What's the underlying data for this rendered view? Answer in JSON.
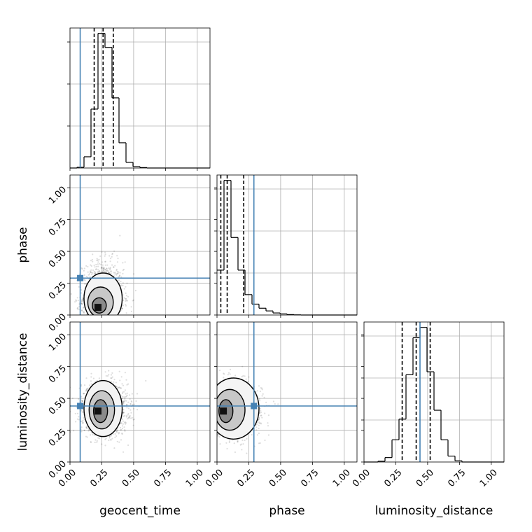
{
  "chart_data": {
    "type": "corner",
    "parameters": [
      "geocent_time",
      "phase",
      "luminosity_distance"
    ],
    "xlabels": [
      "geocent_time",
      "phase",
      "luminosity_distance"
    ],
    "ylabels": [
      "",
      "phase",
      "luminosity_distance"
    ],
    "range": [
      0,
      1.1
    ],
    "ticks": [
      0.0,
      0.25,
      0.5,
      0.75,
      1.0
    ],
    "tick_labels": [
      "0.00",
      "0.25",
      "0.50",
      "0.75",
      "1.00"
    ],
    "grid": true,
    "truth_color": "#4682b4",
    "truths": {
      "geocent_time": 0.08,
      "phase": 0.29,
      "luminosity_distance": 0.44
    },
    "marginals": [
      {
        "parameter": "geocent_time",
        "bins": [
          0.0,
          0.055,
          0.11,
          0.165,
          0.22,
          0.275,
          0.33,
          0.385,
          0.44,
          0.495,
          0.55,
          0.605,
          0.66,
          0.715,
          0.77,
          0.825,
          0.88,
          0.935,
          0.99,
          1.045,
          1.1
        ],
        "counts": [
          0,
          0.005,
          0.08,
          0.42,
          0.96,
          0.86,
          0.5,
          0.18,
          0.04,
          0.01,
          0.003,
          0,
          0,
          0,
          0,
          0,
          0,
          0,
          0,
          0
        ],
        "quantiles": [
          0.19,
          0.26,
          0.34
        ]
      },
      {
        "parameter": "phase",
        "bins": [
          0.0,
          0.055,
          0.11,
          0.165,
          0.22,
          0.275,
          0.33,
          0.385,
          0.44,
          0.495,
          0.55,
          0.605,
          0.66,
          0.715,
          0.77,
          0.825,
          0.88,
          0.935,
          0.99,
          1.045,
          1.1
        ],
        "counts": [
          0.33,
          0.99,
          0.57,
          0.33,
          0.15,
          0.08,
          0.05,
          0.03,
          0.015,
          0.008,
          0.003,
          0.001,
          0,
          0,
          0,
          0,
          0,
          0,
          0,
          0
        ],
        "quantiles": [
          0.03,
          0.08,
          0.21
        ]
      },
      {
        "parameter": "luminosity_distance",
        "bins": [
          0.0,
          0.055,
          0.11,
          0.165,
          0.22,
          0.275,
          0.33,
          0.385,
          0.44,
          0.495,
          0.55,
          0.605,
          0.66,
          0.715,
          0.77,
          0.825,
          0.88,
          0.935,
          0.99,
          1.045,
          1.1
        ],
        "counts": [
          0,
          0,
          0.005,
          0.03,
          0.15,
          0.29,
          0.59,
          0.84,
          0.91,
          0.61,
          0.35,
          0.15,
          0.04,
          0.008,
          0,
          0,
          0,
          0,
          0,
          0
        ],
        "quantiles": [
          0.3,
          0.41,
          0.52
        ]
      }
    ],
    "joint": [
      {
        "x": "geocent_time",
        "y": "phase",
        "center": [
          0.26,
          0.13
        ],
        "spread": [
          0.08,
          0.09
        ],
        "skew_y": 0.6,
        "n_samples": 1400,
        "peak": [
          0.22,
          0.06
        ],
        "contours": [
          {
            "cx": 0.26,
            "cy": 0.13,
            "rx": 0.15,
            "ry": 0.2
          },
          {
            "cx": 0.24,
            "cy": 0.1,
            "rx": 0.1,
            "ry": 0.12
          },
          {
            "cx": 0.23,
            "cy": 0.075,
            "rx": 0.055,
            "ry": 0.06
          }
        ]
      },
      {
        "x": "geocent_time",
        "y": "luminosity_distance",
        "center": [
          0.27,
          0.42
        ],
        "spread": [
          0.09,
          0.1
        ],
        "skew_y": 0,
        "n_samples": 1600,
        "peak": [
          0.22,
          0.4
        ],
        "contours": [
          {
            "cx": 0.26,
            "cy": 0.42,
            "rx": 0.15,
            "ry": 0.22
          },
          {
            "cx": 0.25,
            "cy": 0.41,
            "rx": 0.1,
            "ry": 0.15
          },
          {
            "cx": 0.24,
            "cy": 0.4,
            "rx": 0.055,
            "ry": 0.09
          }
        ]
      },
      {
        "x": "phase",
        "y": "luminosity_distance",
        "center": [
          0.12,
          0.42
        ],
        "spread": [
          0.11,
          0.1
        ],
        "skew_y": 0,
        "n_samples": 1600,
        "peak": [
          0.05,
          0.4
        ],
        "contours": [
          {
            "cx": 0.13,
            "cy": 0.42,
            "rx": 0.2,
            "ry": 0.24
          },
          {
            "cx": 0.1,
            "cy": 0.41,
            "rx": 0.12,
            "ry": 0.16
          },
          {
            "cx": 0.07,
            "cy": 0.4,
            "rx": 0.055,
            "ry": 0.09
          }
        ]
      }
    ]
  }
}
